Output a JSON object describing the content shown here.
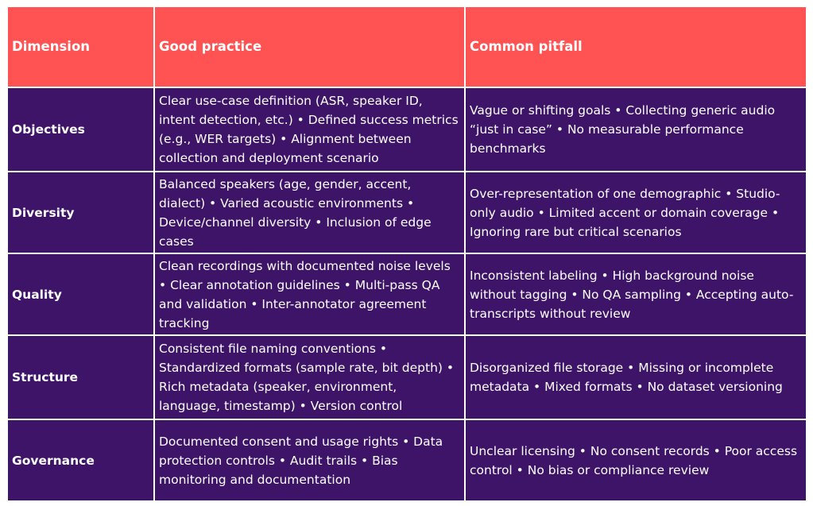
{
  "header": {
    "dimension": "Dimension",
    "good_practice": "Good practice",
    "common_pitfall": "Common pitfall"
  },
  "rows": [
    {
      "dimension": "Objectives",
      "good_practice": "Clear use-case definition (ASR, speaker ID, intent detection, etc.) • Defined success metrics (e.g., WER targets) • Alignment between collection and deployment scenario",
      "common_pitfall": "Vague or shifting goals • Collecting generic audio “just in case” • No measurable performance benchmarks"
    },
    {
      "dimension": "Diversity",
      "good_practice": "Balanced speakers (age, gender, accent, dialect) • Varied acoustic environments • Device/channel diversity • Inclusion of edge cases",
      "common_pitfall": "Over-representation of one demographic • Studio-only audio • Limited accent or domain coverage • Ignoring rare but critical scenarios"
    },
    {
      "dimension": "Quality",
      "good_practice": "Clean recordings with documented noise levels • Clear annotation guidelines • Multi-pass QA and validation • Inter-annotator agreement tracking",
      "common_pitfall": "Inconsistent labeling • High background noise without tagging • No QA sampling • Accepting auto-transcripts without review"
    },
    {
      "dimension": "Structure",
      "good_practice": "Consistent file naming conventions • Standardized formats (sample rate, bit depth) • Rich metadata (speaker, environment, language, timestamp) • Version control",
      "common_pitfall": "Disorganized file storage • Missing or incomplete metadata • Mixed formats • No dataset versioning"
    },
    {
      "dimension": "Governance",
      "good_practice": "Documented consent and usage rights • Data protection controls • Audit trails • Bias monitoring and documentation",
      "common_pitfall": "Unclear licensing • No consent records • Poor access control • No bias or compliance review"
    }
  ],
  "colors": {
    "header_bg": "#ff5252",
    "row_bg": "#3e1469",
    "text": "#ffffff",
    "border": "#ffffff"
  }
}
